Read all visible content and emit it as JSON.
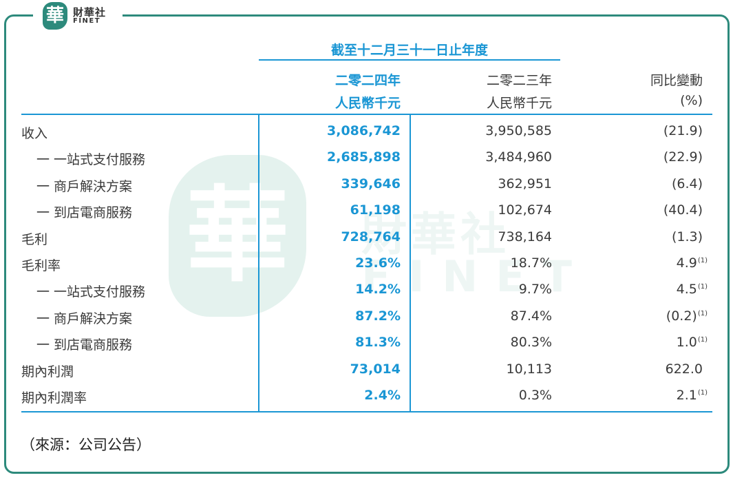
{
  "logo": {
    "seal_char": "華",
    "name_cn": "財華社",
    "name_en": "FINET"
  },
  "watermark": {
    "seal_char": "華",
    "name_cn": "財華社",
    "name_en": "FINET"
  },
  "header": {
    "period": "截至十二月三十一日止年度",
    "col_2024_year": "二零二四年",
    "col_2024_unit": "人民幣千元",
    "col_2023_year": "二零二三年",
    "col_2023_unit": "人民幣千元",
    "col_change": "同比變動",
    "col_change_unit": "(%)"
  },
  "rows": [
    {
      "label": "收入",
      "indent": false,
      "v2024": "3,086,742",
      "v2023": "3,950,585",
      "change": "(21.9)",
      "note": ""
    },
    {
      "label": "一 一站式支付服務",
      "indent": true,
      "v2024": "2,685,898",
      "v2023": "3,484,960",
      "change": "(22.9)",
      "note": ""
    },
    {
      "label": "一 商戶解決方案",
      "indent": true,
      "v2024": "339,646",
      "v2023": "362,951",
      "change": "(6.4)",
      "note": ""
    },
    {
      "label": "一 到店電商服務",
      "indent": true,
      "v2024": "61,198",
      "v2023": "102,674",
      "change": "(40.4)",
      "note": ""
    },
    {
      "label": "毛利",
      "indent": false,
      "v2024": "728,764",
      "v2023": "738,164",
      "change": "(1.3)",
      "note": ""
    },
    {
      "label": "毛利率",
      "indent": false,
      "v2024": "23.6%",
      "v2023": "18.7%",
      "change": "4.9",
      "note": "(1)"
    },
    {
      "label": "一 一站式支付服務",
      "indent": true,
      "v2024": "14.2%",
      "v2023": "9.7%",
      "change": "4.5",
      "note": "(1)"
    },
    {
      "label": "一 商戶解決方案",
      "indent": true,
      "v2024": "87.2%",
      "v2023": "87.4%",
      "change": "(0.2)",
      "note": "(1)"
    },
    {
      "label": "一 到店電商服務",
      "indent": true,
      "v2024": "81.3%",
      "v2023": "80.3%",
      "change": "1.0",
      "note": "(1)"
    },
    {
      "label": "期內利潤",
      "indent": false,
      "v2024": "73,014",
      "v2023": "10,113",
      "change": "622.0",
      "note": ""
    },
    {
      "label": "期內利潤率",
      "indent": false,
      "v2024": "2.4%",
      "v2023": "0.3%",
      "change": "2.1",
      "note": "(1)"
    }
  ],
  "source": "（來源：公司公告）",
  "colors": {
    "accent": "#1a96d4",
    "frame": "#2d8a7c"
  }
}
